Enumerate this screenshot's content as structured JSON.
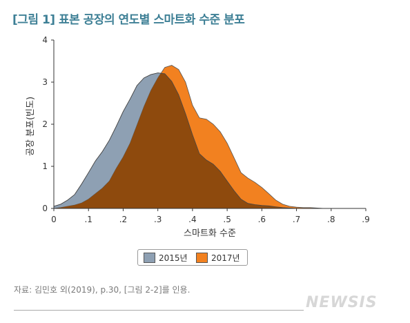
{
  "title": "[그림 1] 표본 공장의 연도별 스마트화 수준 분포",
  "source": "자료: 김민호 외(2019), p.30, [그림 2-2]를 인용.",
  "watermark": "NEWSIS",
  "colors": {
    "title": "#3d7f95",
    "s2015": "#8ea0b3",
    "s2017": "#f28120",
    "overlap": "#8e4a0d"
  },
  "chart_data": {
    "type": "area",
    "xlabel": "스마트화 수준",
    "ylabel": "공장 분포(빈도)",
    "xlim": [
      0,
      0.9
    ],
    "ylim": [
      0,
      4
    ],
    "xticks": [
      "0",
      ".1",
      ".2",
      ".3",
      ".4",
      ".5",
      ".6",
      ".7",
      ".8",
      ".9"
    ],
    "yticks": [
      "0",
      "1",
      "2",
      "3",
      "4"
    ],
    "legend": "bottom",
    "series": [
      {
        "name": "2015년",
        "x": [
          0,
          0.02,
          0.04,
          0.06,
          0.08,
          0.1,
          0.12,
          0.14,
          0.16,
          0.18,
          0.2,
          0.22,
          0.24,
          0.26,
          0.28,
          0.3,
          0.32,
          0.34,
          0.36,
          0.38,
          0.4,
          0.42,
          0.44,
          0.46,
          0.48,
          0.5,
          0.52,
          0.54,
          0.56,
          0.58,
          0.6,
          0.62,
          0.64,
          0.66,
          0.68,
          0.7
        ],
        "y": [
          0.05,
          0.1,
          0.2,
          0.33,
          0.58,
          0.85,
          1.13,
          1.35,
          1.62,
          1.95,
          2.3,
          2.6,
          2.92,
          3.1,
          3.18,
          3.22,
          3.2,
          3.02,
          2.7,
          2.25,
          1.75,
          1.3,
          1.15,
          1.05,
          0.88,
          0.65,
          0.42,
          0.22,
          0.12,
          0.09,
          0.07,
          0.06,
          0.04,
          0.02,
          0.01,
          0.0
        ]
      },
      {
        "name": "2017년",
        "x": [
          0,
          0.02,
          0.04,
          0.06,
          0.08,
          0.1,
          0.12,
          0.14,
          0.16,
          0.18,
          0.2,
          0.22,
          0.24,
          0.26,
          0.28,
          0.3,
          0.32,
          0.34,
          0.36,
          0.38,
          0.4,
          0.42,
          0.44,
          0.46,
          0.48,
          0.5,
          0.52,
          0.54,
          0.56,
          0.58,
          0.6,
          0.62,
          0.64,
          0.66,
          0.68,
          0.7,
          0.72,
          0.74,
          0.76,
          0.78,
          0.8
        ],
        "y": [
          0.0,
          0.02,
          0.05,
          0.08,
          0.13,
          0.22,
          0.35,
          0.48,
          0.65,
          0.95,
          1.22,
          1.55,
          1.98,
          2.42,
          2.8,
          3.1,
          3.35,
          3.4,
          3.3,
          3.0,
          2.45,
          2.15,
          2.12,
          2.0,
          1.82,
          1.55,
          1.2,
          0.85,
          0.72,
          0.62,
          0.5,
          0.35,
          0.2,
          0.1,
          0.05,
          0.03,
          0.02,
          0.02,
          0.01,
          0.0,
          0.0
        ]
      }
    ]
  }
}
